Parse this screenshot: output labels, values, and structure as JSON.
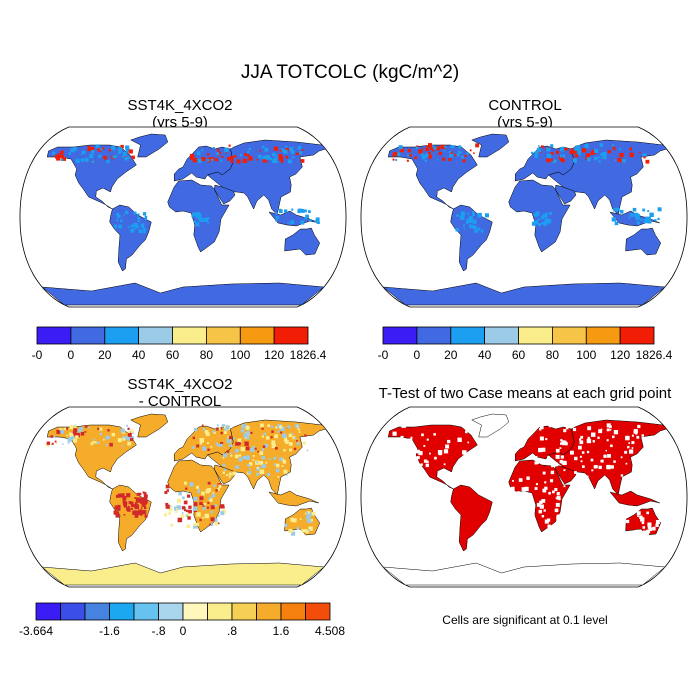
{
  "title": "JJA TOTCOLC (kgC/m^2)",
  "panels": {
    "top_left": {
      "title_line1": "SST4K_4XCO2",
      "title_line2": "(yrs 5-9)"
    },
    "top_right": {
      "title_line1": "CONTROL",
      "title_line2": "(yrs 5-9)"
    },
    "bottom_left": {
      "title_line1": "SST4K_4XCO2",
      "title_line2": "- CONTROL"
    },
    "bottom_right": {
      "title_line1": "T-Test of two Case means at each grid point"
    }
  },
  "colorbar_top": {
    "labels": [
      "-0",
      "0",
      "20",
      "40",
      "60",
      "80",
      "100",
      "120",
      "1826.4"
    ],
    "colors": [
      "#3b1cf5",
      "#4169e1",
      "#1c9ff0",
      "#9ccbe8",
      "#f9ed8c",
      "#f6c447",
      "#f59a11",
      "#f21d05",
      "#d22a2a"
    ]
  },
  "colorbar_bottom": {
    "labels": [
      "-3.664",
      "-1.6",
      "-.8",
      "0",
      ".8",
      "1.6",
      "4.508"
    ],
    "colors": [
      "#3b1cf5",
      "#3b4ee8",
      "#4682e0",
      "#1ca8f0",
      "#66c2ee",
      "#a9d6ec",
      "#fff7bb",
      "#f9ed8c",
      "#f6d055",
      "#f6ac2b",
      "#f5800d",
      "#f24d0b",
      "#d22a2a"
    ]
  },
  "maps": {
    "ocean_color": "#ffffff",
    "top_land_color": "#4169e1",
    "top_high_color": "#1c9ff0",
    "top_hot_color": "#f21d05",
    "diff_land_color": "#f9ed8c",
    "diff_pos_color": "#f6ac2b",
    "diff_strong_color": "#d22a2a",
    "diff_neg_color": "#9ccbe8",
    "ttest_color": "#e00000"
  },
  "note": "Cells are significant at 0.1 level"
}
